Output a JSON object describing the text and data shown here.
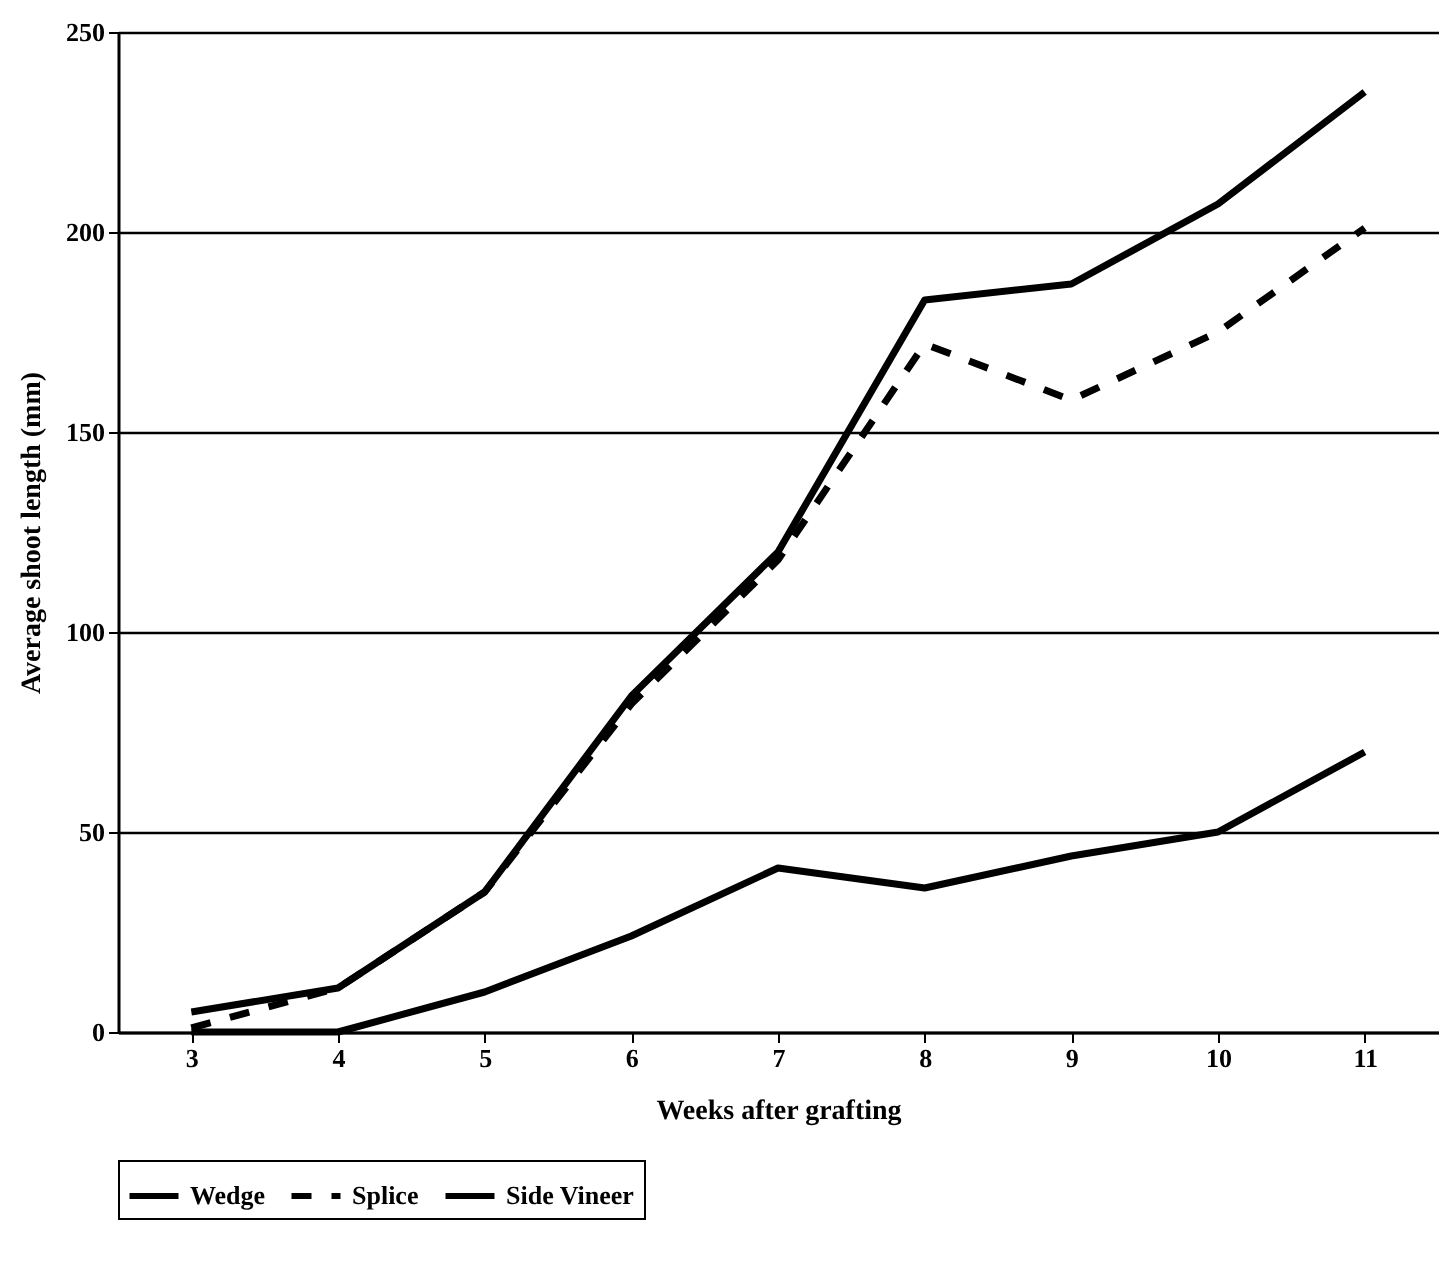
{
  "chart_data": {
    "type": "line",
    "xlabel": "Weeks after grafting",
    "ylabel": "Average shoot length (mm)",
    "categories": [
      "3",
      "4",
      "5",
      "6",
      "7",
      "8",
      "9",
      "10",
      "11"
    ],
    "series": [
      {
        "name": "Wedge",
        "color": "#000000",
        "line_style": "solid",
        "values": [
          5,
          11,
          35,
          84,
          120,
          183,
          187,
          207,
          235
        ]
      },
      {
        "name": "Splice",
        "color": "#000000",
        "line_style": "dashed",
        "values": [
          1,
          11,
          35,
          82,
          118,
          172,
          158,
          175,
          201
        ]
      },
      {
        "name": "Side Vineer",
        "color": "#000000",
        "line_style": "solid",
        "values": [
          0,
          0,
          10,
          24,
          41,
          36,
          44,
          50,
          70
        ]
      }
    ],
    "ylim": [
      0,
      250
    ],
    "yticks": [
      0,
      50,
      100,
      150,
      200,
      250
    ],
    "grid": "y",
    "legend": "bottom"
  }
}
